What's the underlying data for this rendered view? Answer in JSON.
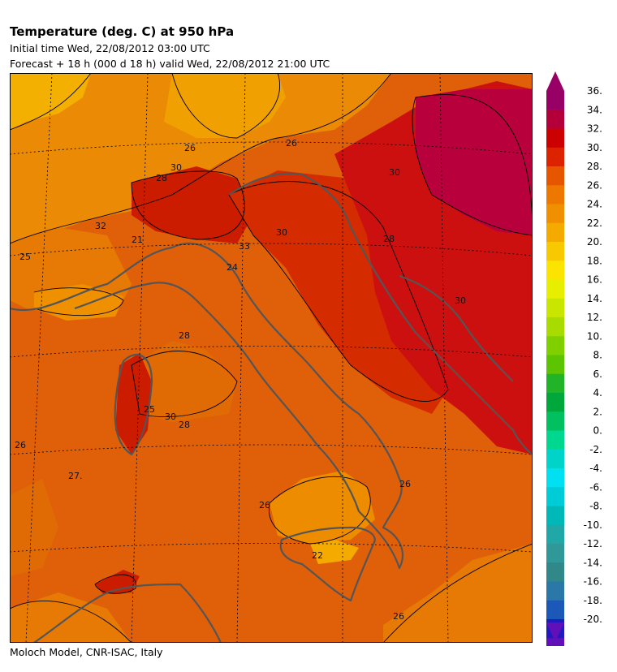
{
  "header": {
    "title": "Temperature (deg. C) at 950 hPa",
    "initial": "Initial time  Wed, 22/08/2012  03:00 UTC",
    "forecast": "Forecast  +  18 h  (000 d 18 h)  valid Wed, 22/08/2012 21:00 UTC"
  },
  "footer": {
    "credit": "Moloch Model, CNR-ISAC, Italy"
  },
  "map": {
    "contour_labels": [
      "26",
      "26",
      "30",
      "30",
      "28",
      "32",
      "33",
      "24",
      "21",
      "25",
      "30",
      "28",
      "30",
      "28",
      "25",
      "30",
      "28",
      "27.",
      "26",
      "26",
      "26",
      "22",
      "26"
    ]
  },
  "colorbar": {
    "levels": [
      "36.",
      "34.",
      "32.",
      "30.",
      "28.",
      "26.",
      "24.",
      "22.",
      "20.",
      "18.",
      "16.",
      "14.",
      "12.",
      "10.",
      "8.",
      "6.",
      "4.",
      "2.",
      "0.",
      "-2.",
      "-4.",
      "-6.",
      "-8.",
      "-10.",
      "-12.",
      "-14.",
      "-16.",
      "-18.",
      "-20."
    ],
    "colors": [
      "#990066",
      "#b3003a",
      "#cc0000",
      "#dd2200",
      "#e65500",
      "#ee7700",
      "#f09000",
      "#f5aa00",
      "#f8c800",
      "#fbe400",
      "#e8ee00",
      "#c8e600",
      "#a8dc00",
      "#80d000",
      "#5cc400",
      "#22b428",
      "#00a83c",
      "#00c060",
      "#00d890",
      "#00d4c8",
      "#00e0f0",
      "#00ccd8",
      "#00b8b8",
      "#20a8a8",
      "#309898",
      "#308888",
      "#2a78a8",
      "#1c58b8",
      "#2218c0",
      "#6010b8"
    ],
    "arrow_top_color": "#990066",
    "arrow_bottom_color": "#6010b8"
  }
}
